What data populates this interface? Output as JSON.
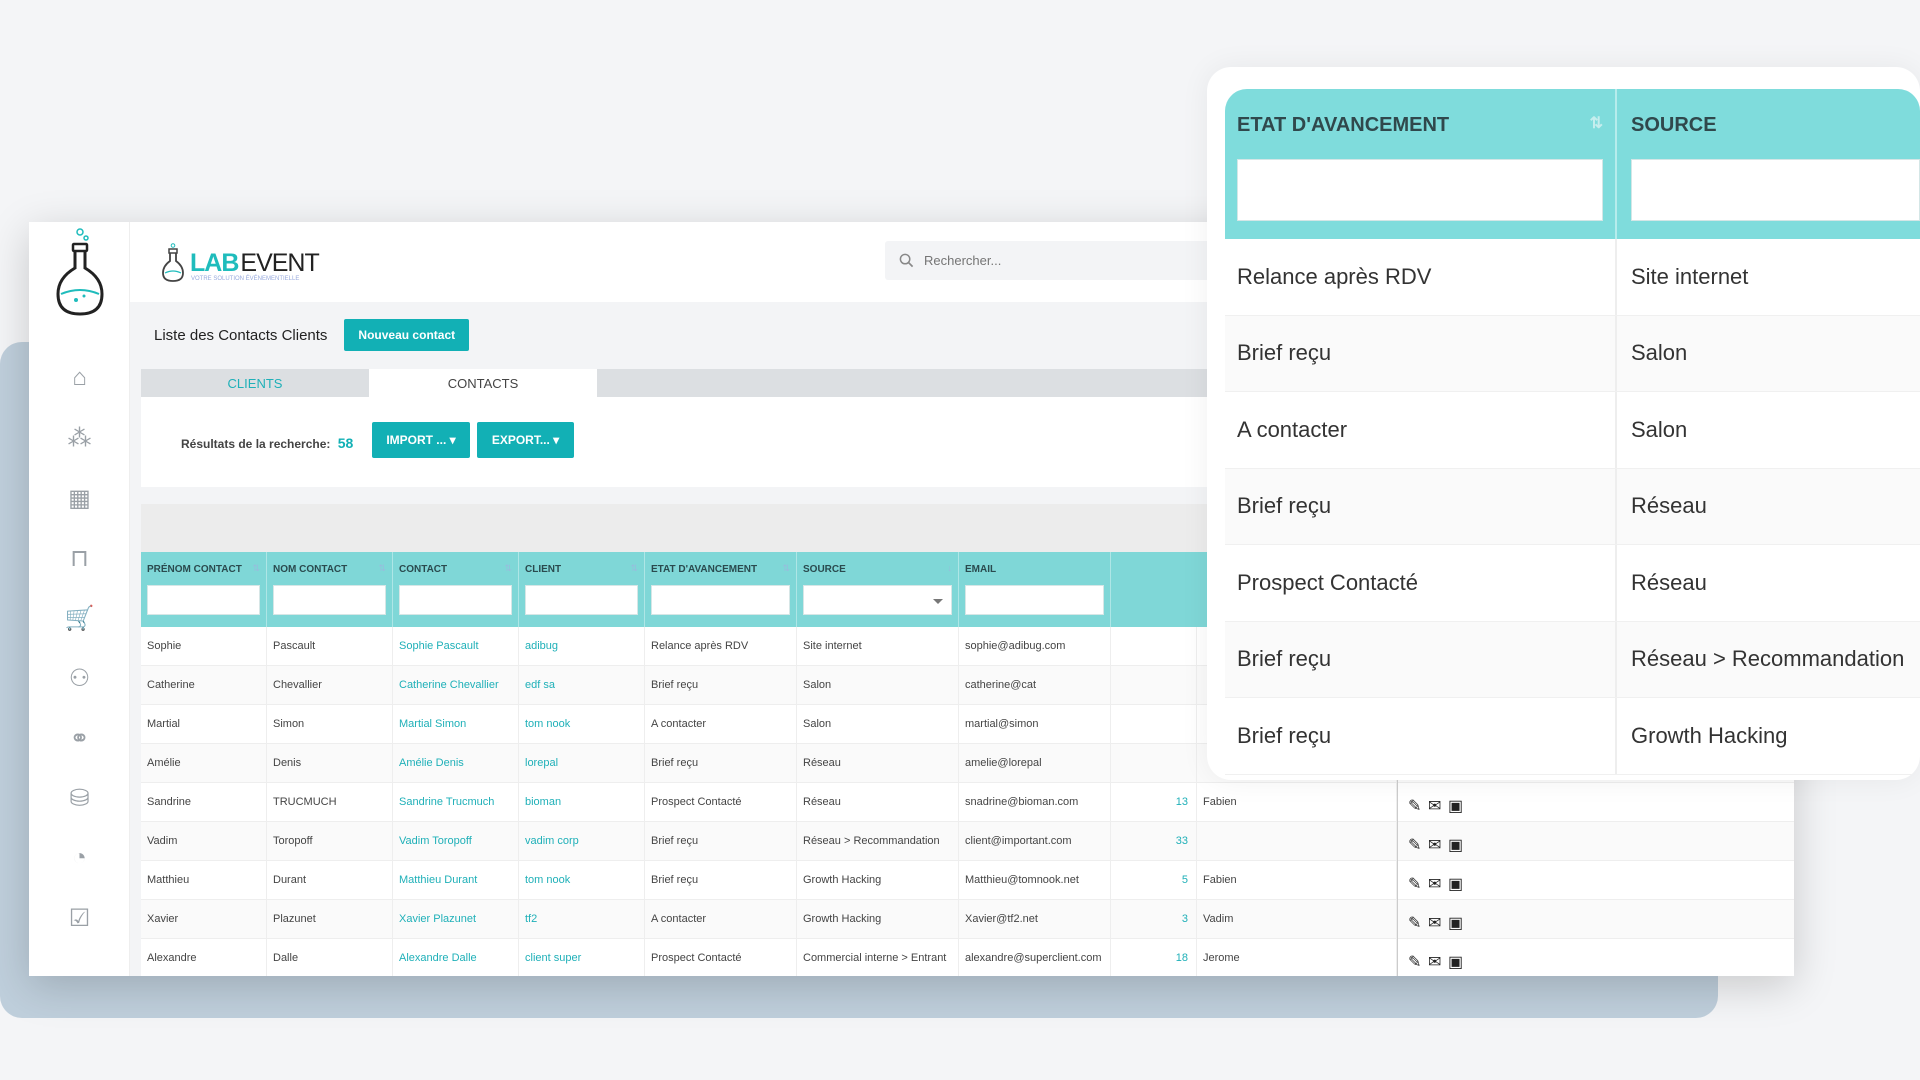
{
  "brand": {
    "lab": "LAB",
    "event": "EVENT",
    "tagline": "VOTRE SOLUTION ÉVÉNEMENTIELLE"
  },
  "search": {
    "placeholder": "Rechercher..."
  },
  "page": {
    "title": "Liste des Contacts Clients",
    "new_contact": "Nouveau contact"
  },
  "tabs": [
    {
      "label": "CLIENTS"
    },
    {
      "label": "CONTACTS"
    }
  ],
  "results": {
    "label": "Résultats de la recherche:",
    "count": "58",
    "import": "IMPORT ... ▾",
    "export": "EXPORT... ▾"
  },
  "sidebar": {
    "icons": [
      "home-icon",
      "team-icon",
      "calendar-star-icon",
      "presentation-board-icon",
      "cart-icon",
      "org-chart-icon",
      "handshake-icon",
      "coins-icon",
      "chart-icon",
      "user-check-icon"
    ]
  },
  "table": {
    "columns": [
      "PRÉNOM CONTACT",
      "NOM CONTACT",
      "CONTACT",
      "CLIENT",
      "ETAT D'AVANCEMENT",
      "SOURCE",
      "EMAIL"
    ],
    "rows": [
      {
        "prenom": "Sophie",
        "nom": "Pascault",
        "contact": "Sophie Pascault",
        "client": "adibug",
        "etat": "Relance après RDV",
        "source": "Site internet",
        "email": "sophie@adibug.com",
        "num": "",
        "owner": ""
      },
      {
        "prenom": "Catherine",
        "nom": "Chevallier",
        "contact": "Catherine Chevallier",
        "client": "edf sa",
        "etat": "Brief reçu",
        "source": "Salon",
        "email": "catherine@cat",
        "num": "",
        "owner": ""
      },
      {
        "prenom": "Martial",
        "nom": "Simon",
        "contact": "Martial Simon",
        "client": "tom nook",
        "etat": "A contacter",
        "source": "Salon",
        "email": "martial@simon",
        "num": "",
        "owner": ""
      },
      {
        "prenom": "Amélie",
        "nom": "Denis",
        "contact": "Amélie Denis",
        "client": "lorepal",
        "etat": "Brief reçu",
        "source": "Réseau",
        "email": "amelie@lorepal",
        "num": "",
        "owner": ""
      },
      {
        "prenom": "Sandrine",
        "nom": "TRUCMUCH",
        "contact": "Sandrine Trucmuch",
        "client": "bioman",
        "etat": "Prospect Contacté",
        "source": "Réseau",
        "email": "snadrine@bioman.com",
        "num": "13",
        "owner": "Fabien"
      },
      {
        "prenom": "Vadim",
        "nom": "Toropoff",
        "contact": "Vadim Toropoff",
        "client": "vadim corp",
        "etat": "Brief reçu",
        "source": "Réseau > Recommandation",
        "email": "client@important.com",
        "num": "33",
        "owner": ""
      },
      {
        "prenom": "Matthieu",
        "nom": "Durant",
        "contact": "Matthieu Durant",
        "client": "tom nook",
        "etat": "Brief reçu",
        "source": "Growth Hacking",
        "email": "Matthieu@tomnook.net",
        "num": "5",
        "owner": "Fabien"
      },
      {
        "prenom": "Xavier",
        "nom": "Plazunet",
        "contact": "Xavier Plazunet",
        "client": "tf2",
        "etat": "A contacter",
        "source": "Growth Hacking",
        "email": "Xavier@tf2.net",
        "num": "3",
        "owner": "Vadim"
      },
      {
        "prenom": "Alexandre",
        "nom": "Dalle",
        "contact": "Alexandre Dalle",
        "client": "client super",
        "etat": "Prospect Contacté",
        "source": "Commercial interne > Entrant",
        "email": "alexandre@superclient.com",
        "num": "18",
        "owner": "Jerome"
      }
    ]
  },
  "zoom": {
    "col1": "ETAT D'AVANCEMENT",
    "col2": "SOURCE",
    "sort_icon": "sort-arrows-icon",
    "rows": [
      {
        "etat": "Relance après RDV",
        "source": "Site internet"
      },
      {
        "etat": "Brief reçu",
        "source": "Salon"
      },
      {
        "etat": "A contacter",
        "source": "Salon"
      },
      {
        "etat": "Brief reçu",
        "source": "Réseau"
      },
      {
        "etat": "Prospect Contacté",
        "source": "Réseau"
      },
      {
        "etat": "Brief reçu",
        "source": "Réseau > Recommandation"
      },
      {
        "etat": "Brief reçu",
        "source": "Growth Hacking"
      }
    ]
  },
  "colors": {
    "teal": "#12b0b5",
    "header_teal": "#7fd7d7",
    "link": "#1fb0b8"
  }
}
